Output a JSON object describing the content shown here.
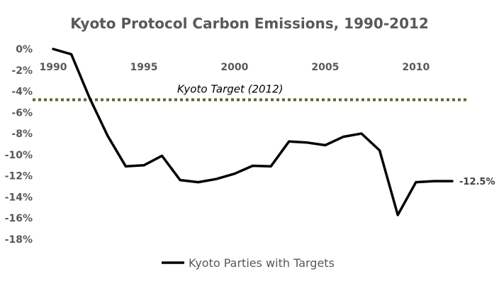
{
  "chart_data": {
    "type": "line",
    "title": "Kyoto Protocol Carbon Emissions, 1990-2012",
    "xlabel": "",
    "ylabel": "",
    "x": [
      1990,
      1991,
      1992,
      1993,
      1994,
      1995,
      1996,
      1997,
      1998,
      1999,
      2000,
      2001,
      2002,
      2003,
      2004,
      2005,
      2006,
      2007,
      2008,
      2009,
      2010,
      2011,
      2012
    ],
    "xticks": [
      1990,
      1995,
      2000,
      2005,
      2010
    ],
    "xtick_labels": [
      "1990",
      "1995",
      "2000",
      "2005",
      "2010"
    ],
    "ylim": [
      -18,
      0
    ],
    "yticks": [
      0,
      -2,
      -4,
      -6,
      -8,
      -10,
      -12,
      -14,
      -16,
      -18
    ],
    "ytick_labels": [
      "0%",
      "-2%",
      "-4%",
      "-6%",
      "-8%",
      "-10%",
      "-12%",
      "-14%",
      "-16%",
      "-18%"
    ],
    "grid": false,
    "legend_position": "bottom",
    "series": [
      {
        "name": "Kyoto Parties with Targets",
        "color": "#000000",
        "values": [
          0,
          -0.5,
          -4.6,
          -8.2,
          -11.1,
          -11.0,
          -10.1,
          -12.4,
          -12.6,
          -12.3,
          -11.8,
          -11.05,
          -11.1,
          -8.75,
          -8.85,
          -9.1,
          -8.3,
          -8.0,
          -9.6,
          -15.7,
          -12.6,
          -12.5,
          -12.5
        ]
      }
    ],
    "reference_line": {
      "value": -4.8,
      "label": "Kyoto Target (2012)",
      "color": "#5a6a2e",
      "style": "dotted"
    },
    "end_label": "-12.5%"
  }
}
